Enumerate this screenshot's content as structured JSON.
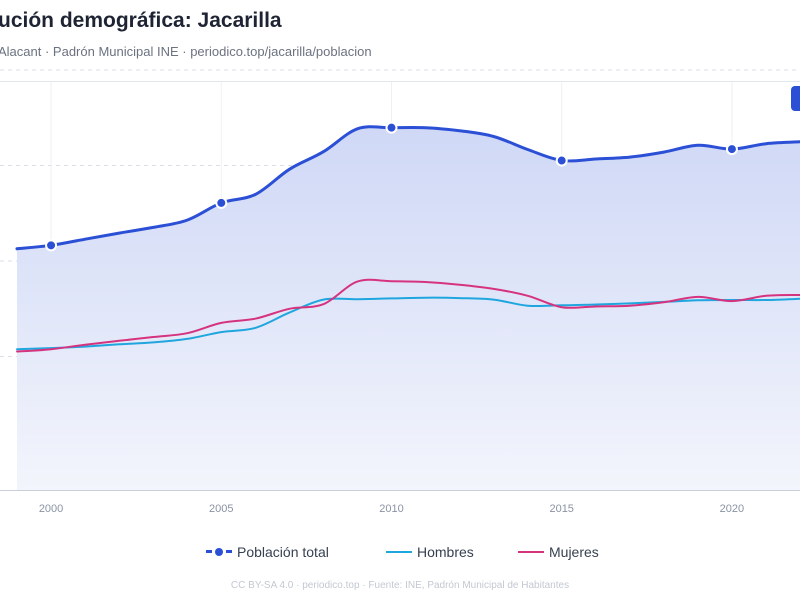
{
  "header": {
    "title": "ución demográfica: Jacarilla",
    "subtitle": "Alacant · Padrón Municipal INE · periodico.top/jacarilla/poblacion"
  },
  "legend": {
    "total": "Población total",
    "hombres": "Hombres",
    "mujeres": "Mujeres"
  },
  "footer": "CC BY-SA 4.0 · periodico.top · Fuente: INE, Padrón Municipal de Habitantes",
  "colors": {
    "total": "#2b50d6",
    "hombres": "#1fa6de",
    "mujeres": "#d6337f",
    "area": "#dfe5f8",
    "grid": "#d9dde5"
  },
  "chart_data": {
    "type": "line",
    "x": [
      1999,
      2000,
      2001,
      2002,
      2003,
      2004,
      2005,
      2006,
      2007,
      2008,
      2009,
      2010,
      2011,
      2012,
      2013,
      2014,
      2015,
      2016,
      2017,
      2018,
      2019,
      2020,
      2021,
      2022
    ],
    "xticks": [
      2000,
      2005,
      2010,
      2015,
      2020
    ],
    "xlim": [
      1998.5,
      2022.0
    ],
    "ylim": [
      0,
      1000
    ],
    "yticks": [
      0,
      250,
      500,
      750,
      1000
    ],
    "grid": true,
    "series": [
      {
        "name": "Población total",
        "key": "total",
        "marker_years": [
          2000,
          2005,
          2010,
          2015,
          2020
        ],
        "values": [
          532,
          541,
          557,
          573,
          588,
          607,
          652,
          674,
          740,
          786,
          846,
          849,
          849,
          841,
          826,
          792,
          763,
          767,
          772,
          785,
          803,
          793,
          807,
          812
        ]
      },
      {
        "name": "Hombres",
        "key": "hombres",
        "values": [
          269,
          272,
          276,
          282,
          287,
          296,
          314,
          325,
          365,
          399,
          400,
          402,
          404,
          403,
          399,
          383,
          384,
          386,
          389,
          393,
          397,
          398,
          398,
          401
        ]
      },
      {
        "name": "Mujeres",
        "key": "mujeres",
        "values": [
          263,
          269,
          281,
          291,
          301,
          311,
          338,
          349,
          375,
          387,
          446,
          447,
          445,
          438,
          427,
          409,
          379,
          381,
          383,
          392,
          406,
          395,
          409,
          411
        ]
      }
    ]
  }
}
